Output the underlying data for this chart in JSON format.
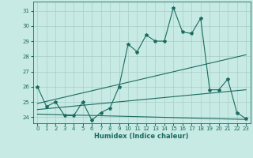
{
  "xlabel": "Humidex (Indice chaleur)",
  "xlim": [
    -0.5,
    23.5
  ],
  "ylim": [
    23.6,
    31.6
  ],
  "yticks": [
    24,
    25,
    26,
    27,
    28,
    29,
    30,
    31
  ],
  "xticks": [
    0,
    1,
    2,
    3,
    4,
    5,
    6,
    7,
    8,
    9,
    10,
    11,
    12,
    13,
    14,
    15,
    16,
    17,
    18,
    19,
    20,
    21,
    22,
    23
  ],
  "background_color": "#c8eae4",
  "grid_color": "#a8cec8",
  "line_color": "#1a6b60",
  "series_main_x": [
    0,
    1,
    2,
    3,
    4,
    5,
    6,
    7,
    8,
    9,
    10,
    11,
    12,
    13,
    14,
    15,
    16,
    17,
    18,
    19,
    20,
    21,
    22,
    23
  ],
  "series_main_y": [
    26.0,
    24.7,
    25.0,
    24.1,
    24.1,
    25.0,
    23.8,
    24.3,
    24.6,
    26.0,
    28.8,
    28.3,
    29.4,
    29.0,
    29.0,
    31.2,
    29.6,
    29.5,
    30.5,
    25.8,
    25.8,
    26.5,
    24.3,
    23.9
  ],
  "upper_trend_x": [
    0,
    23
  ],
  "upper_trend_y": [
    24.9,
    28.1
  ],
  "middle_trend_x": [
    0,
    23
  ],
  "middle_trend_y": [
    24.5,
    25.8
  ],
  "lower_trend_x": [
    0,
    23
  ],
  "lower_trend_y": [
    24.2,
    23.85
  ]
}
